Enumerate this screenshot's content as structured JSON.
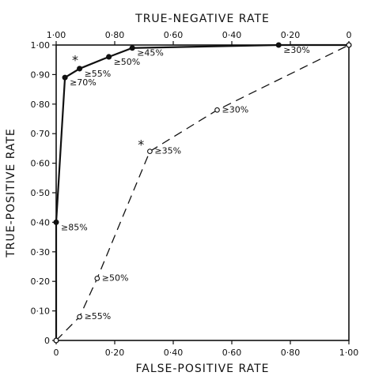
{
  "chart_data": {
    "type": "line",
    "title": "",
    "xlabel": "FALSE-POSITIVE RATE",
    "ylabel": "TRUE-POSITIVE RATE",
    "x2label": "TRUE-NEGATIVE RATE",
    "xlim": [
      0,
      1
    ],
    "ylim": [
      0,
      1
    ],
    "grid": false,
    "x_ticks": [
      "0",
      "0·20",
      "0·40",
      "0·60",
      "0·80",
      "1·00"
    ],
    "x2_ticks": [
      "1·00",
      "0·80",
      "0·60",
      "0·40",
      "0·20",
      "0"
    ],
    "y_ticks": [
      "0",
      "0·10",
      "0·20",
      "0·30",
      "0·40",
      "0·50",
      "0·60",
      "0·70",
      "0·80",
      "0·90",
      "1·00"
    ],
    "series": [
      {
        "style": "solid-filled-markers",
        "x": [
          0,
          0.0,
          0.03,
          0.08,
          0.18,
          0.26,
          0.76,
          1.0
        ],
        "y": [
          0,
          0.4,
          0.89,
          0.92,
          0.96,
          0.99,
          1.0,
          1.0
        ],
        "labels": [
          "",
          "≥85%",
          "≥70%",
          "≥55%",
          "≥50%",
          "≥45%",
          "≥30%",
          ""
        ]
      },
      {
        "style": "dashed-open-markers",
        "x": [
          0,
          0.08,
          0.14,
          0.32,
          0.55,
          1.0
        ],
        "y": [
          0,
          0.08,
          0.21,
          0.64,
          0.78,
          1.0
        ],
        "labels": [
          "",
          "≥55%",
          "≥50%",
          "≥35%",
          "≥30%",
          ""
        ]
      }
    ],
    "annotations": [
      {
        "text": "*",
        "x": 0.065,
        "y": 0.95
      },
      {
        "text": "*",
        "x": 0.29,
        "y": 0.665
      }
    ]
  }
}
